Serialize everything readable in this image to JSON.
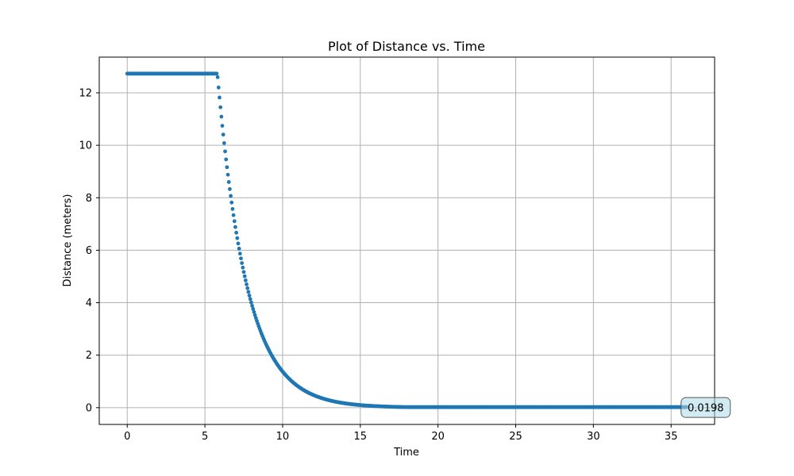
{
  "chart_data": {
    "type": "scatter",
    "title": "Plot of Distance vs. Time",
    "xlabel": "Time",
    "ylabel": "Distance (meters)",
    "xlim": [
      -1.8,
      37.8
    ],
    "ylim": [
      -0.64,
      13.36
    ],
    "xticks": [
      0,
      5,
      10,
      15,
      20,
      25,
      30,
      35
    ],
    "yticks": [
      0,
      2,
      4,
      6,
      8,
      10,
      12
    ],
    "grid": true,
    "series": [
      {
        "color": "#1f77b4",
        "marker": "circle",
        "plateau_value": 12.73,
        "plateau_end_time": 5.8,
        "decay_rate": 0.53,
        "floor_value": 0.0198,
        "end_time": 36.0,
        "sample_step": 0.06,
        "points": [
          [
            0.0,
            12.73
          ],
          [
            5.8,
            12.73
          ],
          [
            6.0,
            11.5
          ],
          [
            6.5,
            8.8
          ],
          [
            7.0,
            6.7
          ],
          [
            8.0,
            4.0
          ],
          [
            9.0,
            2.35
          ],
          [
            10.0,
            1.4
          ],
          [
            11.0,
            0.83
          ],
          [
            12.0,
            0.5
          ],
          [
            13.0,
            0.3
          ],
          [
            14.0,
            0.18
          ],
          [
            15.0,
            0.11
          ],
          [
            16.0,
            0.07
          ],
          [
            17.0,
            0.04
          ],
          [
            20.0,
            0.0198
          ],
          [
            25.0,
            0.0198
          ],
          [
            30.0,
            0.0198
          ],
          [
            36.0,
            0.0198
          ]
        ]
      }
    ],
    "annotation": {
      "text": "0.0198",
      "x": 36.0,
      "y": 0.0198,
      "box_color": "#add8e6"
    }
  }
}
